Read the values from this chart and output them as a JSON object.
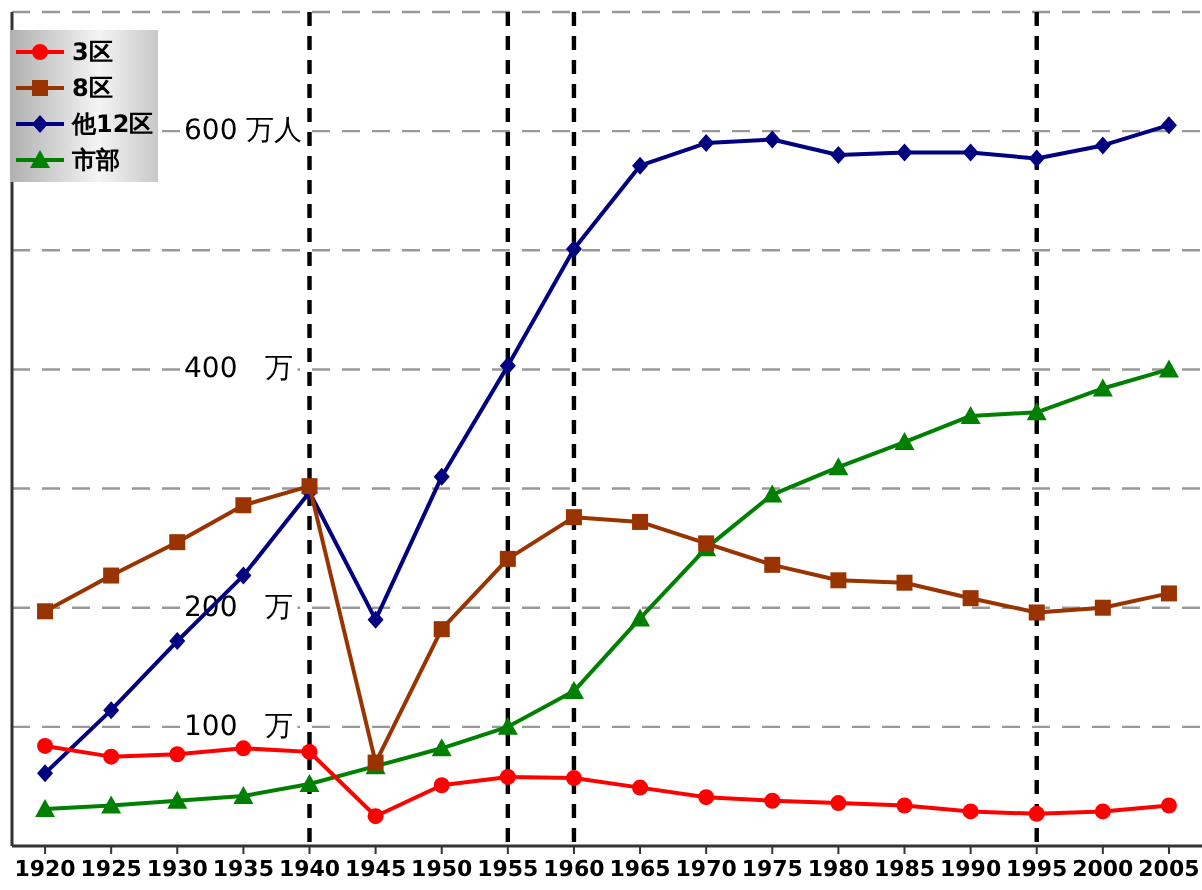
{
  "chart_data": {
    "type": "line",
    "x": [
      1920,
      1925,
      1930,
      1935,
      1940,
      1945,
      1950,
      1955,
      1960,
      1965,
      1970,
      1975,
      1980,
      1985,
      1990,
      1995,
      2000,
      2005
    ],
    "series": [
      {
        "name": "3区",
        "color": "#ff0000",
        "marker": "circle",
        "values": [
          84,
          75,
          77,
          82,
          79,
          25,
          51,
          58,
          57,
          49,
          41,
          38,
          36,
          34,
          29,
          27,
          29,
          34
        ]
      },
      {
        "name": "8区",
        "color": "#993300",
        "marker": "square",
        "values": [
          197,
          227,
          255,
          286,
          302,
          70,
          182,
          241,
          276,
          272,
          254,
          236,
          223,
          221,
          208,
          196,
          200,
          212
        ]
      },
      {
        "name": "他12区",
        "color": "#000080",
        "marker": "diamond",
        "values": [
          61,
          114,
          172,
          227,
          297,
          190,
          310,
          403,
          501,
          571,
          590,
          593,
          580,
          582,
          582,
          577,
          588,
          605
        ]
      },
      {
        "name": "市部",
        "color": "#008000",
        "marker": "triangle",
        "values": [
          31,
          34,
          38,
          42,
          52,
          67,
          82,
          100,
          130,
          191,
          250,
          295,
          318,
          339,
          361,
          364,
          384,
          400
        ]
      }
    ],
    "xlim": [
      1917.5,
      2007.5
    ],
    "xticks": [
      1920,
      1925,
      1930,
      1935,
      1940,
      1945,
      1950,
      1955,
      1960,
      1965,
      1970,
      1975,
      1980,
      1985,
      1990,
      1995,
      2000,
      2005
    ],
    "ylim": [
      0,
      700
    ],
    "yticks": [
      {
        "value": 100,
        "label": "100　万"
      },
      {
        "value": 200,
        "label": "200　万"
      },
      {
        "value": 300,
        "label": null
      },
      {
        "value": 400,
        "label": "400　万"
      },
      {
        "value": 500,
        "label": null
      },
      {
        "value": 600,
        "label": "600 万人"
      },
      {
        "value": 700,
        "label": null
      }
    ],
    "grid": "y",
    "legend": "top left",
    "line_style": "solid",
    "ref_lines": [
      {
        "axis": "x",
        "value": 1940,
        "color": "#000000",
        "line_style": "dashed"
      },
      {
        "axis": "x",
        "value": 1955,
        "color": "#000000",
        "line_style": "dashed"
      },
      {
        "axis": "x",
        "value": 1960,
        "color": "#000000",
        "line_style": "dashed"
      },
      {
        "axis": "x",
        "value": 1995,
        "color": "#000000",
        "line_style": "dashed"
      }
    ]
  }
}
